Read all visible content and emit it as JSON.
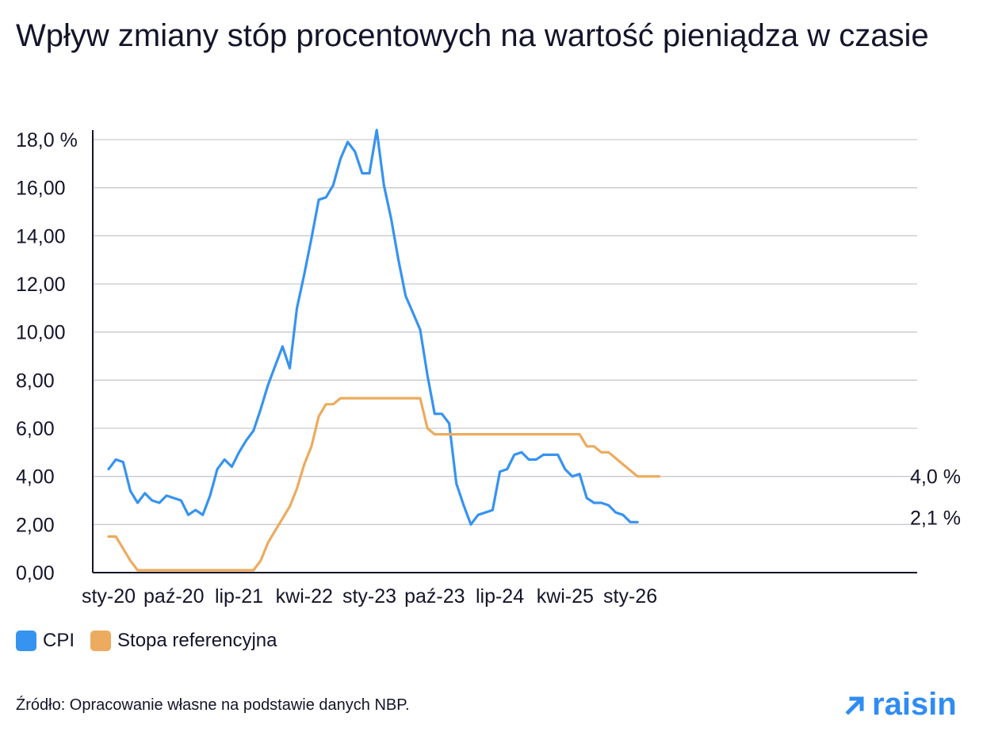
{
  "title": "Wpływ zmiany stóp procentowych na wartość pieniądza w czasie",
  "source": "Źródło: Opracowanie własne na podstawie danych NBP.",
  "logo": {
    "text": "raisin",
    "icon": "arrow-up-right-icon",
    "color": "#2f8cf2"
  },
  "legend": [
    {
      "label": "CPI",
      "color": "#3793f0"
    },
    {
      "label": "Stopa referencyjna",
      "color": "#ecab5e"
    }
  ],
  "chart_data": {
    "type": "line",
    "x_start": "sty-20",
    "x_ticks": [
      "sty-20",
      "paź-20",
      "lip-21",
      "kwi-22",
      "sty-23",
      "paź-23",
      "lip-24",
      "kwi-25",
      "sty-26"
    ],
    "y_ticks": [
      "18,0 %",
      "16,00",
      "14,00",
      "12,00",
      "10,00",
      "8,00",
      "6,00",
      "4,00",
      "2,00",
      "0,00"
    ],
    "ylim": [
      0,
      18
    ],
    "grid": "horizontal",
    "legend_position": "bottom-left",
    "end_labels": [
      "4,0 %",
      "2,1 %"
    ],
    "series": [
      {
        "name": "CPI",
        "color": "#3793f0",
        "values": [
          4.3,
          4.7,
          4.6,
          3.4,
          2.9,
          3.3,
          3.0,
          2.9,
          3.2,
          3.1,
          3.0,
          2.4,
          2.6,
          2.4,
          3.2,
          4.3,
          4.7,
          4.4,
          5.0,
          5.5,
          5.9,
          6.8,
          7.8,
          8.6,
          9.4,
          8.5,
          11.0,
          12.4,
          13.9,
          15.5,
          15.6,
          16.1,
          17.2,
          17.9,
          17.5,
          16.6,
          16.6,
          18.4,
          16.1,
          14.7,
          13.0,
          11.5,
          10.8,
          10.1,
          8.2,
          6.6,
          6.6,
          6.2,
          3.7,
          2.8,
          2.0,
          2.4,
          2.5,
          2.6,
          4.2,
          4.3,
          4.9,
          5.0,
          4.7,
          4.7,
          4.9,
          4.9,
          4.9,
          4.3,
          4.0,
          4.1,
          3.1,
          2.9,
          2.9,
          2.8,
          2.5,
          2.4,
          2.1,
          2.1
        ]
      },
      {
        "name": "Stopa referencyjna",
        "color": "#ecab5e",
        "values": [
          1.5,
          1.5,
          1.0,
          0.5,
          0.1,
          0.1,
          0.1,
          0.1,
          0.1,
          0.1,
          0.1,
          0.1,
          0.1,
          0.1,
          0.1,
          0.1,
          0.1,
          0.1,
          0.1,
          0.1,
          0.1,
          0.5,
          1.25,
          1.75,
          2.25,
          2.75,
          3.5,
          4.5,
          5.25,
          6.5,
          7.0,
          7.0,
          7.25,
          7.25,
          7.25,
          7.25,
          7.25,
          7.25,
          7.25,
          7.25,
          7.25,
          7.25,
          7.25,
          7.25,
          6.0,
          5.75,
          5.75,
          5.75,
          5.75,
          5.75,
          5.75,
          5.75,
          5.75,
          5.75,
          5.75,
          5.75,
          5.75,
          5.75,
          5.75,
          5.75,
          5.75,
          5.75,
          5.75,
          5.75,
          5.75,
          5.75,
          5.25,
          5.25,
          5.0,
          5.0,
          4.75,
          4.5,
          4.25,
          4.0,
          4.0,
          4.0,
          4.0
        ]
      }
    ]
  }
}
